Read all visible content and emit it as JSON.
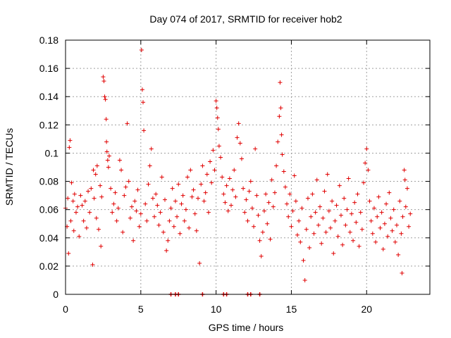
{
  "chart_data": {
    "type": "scatter",
    "title": "Day 074 of 2017, SRMTID for receiver hob2",
    "xlabel": "GPS time / hours",
    "ylabel": "SRMTID / TECUs",
    "xlim": [
      0,
      24.2
    ],
    "ylim": [
      0,
      0.18
    ],
    "xticks": [
      0,
      5,
      10,
      15,
      20
    ],
    "xtick_labels": [
      "0",
      "5",
      "10",
      "15",
      "20"
    ],
    "yticks": [
      0,
      0.02,
      0.04,
      0.06,
      0.08,
      0.1,
      0.12,
      0.14,
      0.16,
      0.18
    ],
    "ytick_labels": [
      "0",
      "0.02",
      "0.04",
      "0.06",
      "0.08",
      "0.1",
      "0.12",
      "0.14",
      "0.16",
      "0.18"
    ],
    "grid": true,
    "marker": "plus",
    "color": "#e00000",
    "series": [
      {
        "name": "SRMTID",
        "points": [
          [
            0.0,
            0.061
          ],
          [
            0.1,
            0.048
          ],
          [
            0.15,
            0.068
          ],
          [
            0.2,
            0.029
          ],
          [
            0.25,
            0.104
          ],
          [
            0.3,
            0.109
          ],
          [
            0.35,
            0.052
          ],
          [
            0.4,
            0.079
          ],
          [
            0.5,
            0.066
          ],
          [
            0.55,
            0.045
          ],
          [
            0.6,
            0.071
          ],
          [
            0.7,
            0.058
          ],
          [
            0.8,
            0.062
          ],
          [
            0.9,
            0.041
          ],
          [
            1.0,
            0.07
          ],
          [
            1.1,
            0.063
          ],
          [
            1.2,
            0.052
          ],
          [
            1.3,
            0.066
          ],
          [
            1.4,
            0.047
          ],
          [
            1.5,
            0.073
          ],
          [
            1.6,
            0.058
          ],
          [
            1.7,
            0.075
          ],
          [
            1.8,
            0.021
          ],
          [
            1.85,
            0.088
          ],
          [
            1.9,
            0.068
          ],
          [
            2.0,
            0.085
          ],
          [
            2.05,
            0.054
          ],
          [
            2.1,
            0.091
          ],
          [
            2.2,
            0.046
          ],
          [
            2.3,
            0.077
          ],
          [
            2.35,
            0.034
          ],
          [
            2.4,
            0.069
          ],
          [
            2.5,
            0.154
          ],
          [
            2.55,
            0.151
          ],
          [
            2.6,
            0.14
          ],
          [
            2.65,
            0.138
          ],
          [
            2.7,
            0.124
          ],
          [
            2.72,
            0.108
          ],
          [
            2.75,
            0.101
          ],
          [
            2.8,
            0.095
          ],
          [
            2.85,
            0.09
          ],
          [
            2.9,
            0.098
          ],
          [
            3.0,
            0.075
          ],
          [
            3.1,
            0.058
          ],
          [
            3.2,
            0.064
          ],
          [
            3.3,
            0.072
          ],
          [
            3.4,
            0.052
          ],
          [
            3.5,
            0.061
          ],
          [
            3.6,
            0.095
          ],
          [
            3.7,
            0.088
          ],
          [
            3.8,
            0.044
          ],
          [
            3.9,
            0.07
          ],
          [
            4.0,
            0.076
          ],
          [
            4.1,
            0.121
          ],
          [
            4.2,
            0.08
          ],
          [
            4.3,
            0.054
          ],
          [
            4.4,
            0.062
          ],
          [
            4.5,
            0.038
          ],
          [
            4.6,
            0.066
          ],
          [
            4.7,
            0.059
          ],
          [
            4.8,
            0.074
          ],
          [
            4.9,
            0.048
          ],
          [
            5.0,
            0.057
          ],
          [
            5.05,
            0.173
          ],
          [
            5.1,
            0.145
          ],
          [
            5.15,
            0.136
          ],
          [
            5.2,
            0.116
          ],
          [
            5.3,
            0.064
          ],
          [
            5.4,
            0.052
          ],
          [
            5.5,
            0.078
          ],
          [
            5.6,
            0.091
          ],
          [
            5.7,
            0.103
          ],
          [
            5.8,
            0.068
          ],
          [
            5.9,
            0.055
          ],
          [
            6.0,
            0.071
          ],
          [
            6.1,
            0.063
          ],
          [
            6.2,
            0.049
          ],
          [
            6.3,
            0.058
          ],
          [
            6.4,
            0.083
          ],
          [
            6.5,
            0.044
          ],
          [
            6.6,
            0.067
          ],
          [
            6.7,
            0.031
          ],
          [
            6.8,
            0.038
          ],
          [
            6.9,
            0.052
          ],
          [
            7.0,
            0.061
          ],
          [
            7.1,
            0.075
          ],
          [
            7.2,
            0.048
          ],
          [
            7.3,
            0.066
          ],
          [
            7.4,
            0.055
          ],
          [
            7.5,
            0.078
          ],
          [
            7.6,
            0.043
          ],
          [
            7.7,
            0.064
          ],
          [
            7.8,
            0.07
          ],
          [
            7.9,
            0.052
          ],
          [
            8.0,
            0.06
          ],
          [
            8.1,
            0.083
          ],
          [
            8.2,
            0.047
          ],
          [
            8.3,
            0.088
          ],
          [
            8.4,
            0.069
          ],
          [
            8.5,
            0.074
          ],
          [
            8.6,
            0.057
          ],
          [
            8.7,
            0.045
          ],
          [
            8.8,
            0.068
          ],
          [
            8.9,
            0.022
          ],
          [
            9.0,
            0.078
          ],
          [
            9.1,
            0.091
          ],
          [
            9.2,
            0.066
          ],
          [
            9.3,
            0.072
          ],
          [
            9.4,
            0.085
          ],
          [
            9.5,
            0.058
          ],
          [
            9.6,
            0.094
          ],
          [
            9.7,
            0.079
          ],
          [
            9.8,
            0.102
          ],
          [
            9.9,
            0.088
          ],
          [
            10.0,
            0.137
          ],
          [
            10.05,
            0.132
          ],
          [
            10.1,
            0.125
          ],
          [
            10.15,
            0.117
          ],
          [
            10.2,
            0.105
          ],
          [
            10.3,
            0.097
          ],
          [
            10.4,
            0.083
          ],
          [
            10.5,
            0.071
          ],
          [
            10.6,
            0.065
          ],
          [
            10.7,
            0.077
          ],
          [
            10.8,
            0.059
          ],
          [
            10.9,
            0.082
          ],
          [
            11.0,
            0.063
          ],
          [
            11.1,
            0.074
          ],
          [
            11.2,
            0.088
          ],
          [
            11.3,
            0.069
          ],
          [
            11.4,
            0.111
          ],
          [
            11.5,
            0.121
          ],
          [
            11.6,
            0.107
          ],
          [
            11.7,
            0.096
          ],
          [
            11.8,
            0.075
          ],
          [
            11.9,
            0.058
          ],
          [
            12.0,
            0.067
          ],
          [
            12.1,
            0.052
          ],
          [
            12.2,
            0.073
          ],
          [
            12.3,
            0.08
          ],
          [
            12.4,
            0.061
          ],
          [
            12.5,
            0.048
          ],
          [
            12.6,
            0.103
          ],
          [
            12.7,
            0.07
          ],
          [
            12.8,
            0.056
          ],
          [
            12.9,
            0.038
          ],
          [
            13.0,
            0.027
          ],
          [
            13.1,
            0.044
          ],
          [
            13.2,
            0.059
          ],
          [
            13.3,
            0.071
          ],
          [
            13.4,
            0.05
          ],
          [
            13.5,
            0.065
          ],
          [
            13.6,
            0.039
          ],
          [
            13.7,
            0.081
          ],
          [
            13.8,
            0.062
          ],
          [
            13.9,
            0.072
          ],
          [
            14.0,
            0.091
          ],
          [
            14.1,
            0.108
          ],
          [
            14.2,
            0.126
          ],
          [
            14.25,
            0.15
          ],
          [
            14.3,
            0.132
          ],
          [
            14.35,
            0.113
          ],
          [
            14.4,
            0.099
          ],
          [
            14.5,
            0.087
          ],
          [
            14.6,
            0.076
          ],
          [
            14.7,
            0.064
          ],
          [
            14.8,
            0.055
          ],
          [
            14.9,
            0.071
          ],
          [
            15.0,
            0.048
          ],
          [
            15.1,
            0.059
          ],
          [
            15.2,
            0.084
          ],
          [
            15.3,
            0.066
          ],
          [
            15.4,
            0.042
          ],
          [
            15.5,
            0.052
          ],
          [
            15.6,
            0.037
          ],
          [
            15.7,
            0.061
          ],
          [
            15.8,
            0.024
          ],
          [
            15.9,
            0.01
          ],
          [
            16.0,
            0.046
          ],
          [
            16.1,
            0.068
          ],
          [
            16.2,
            0.033
          ],
          [
            16.3,
            0.055
          ],
          [
            16.4,
            0.071
          ],
          [
            16.5,
            0.043
          ],
          [
            16.6,
            0.058
          ],
          [
            16.7,
            0.081
          ],
          [
            16.8,
            0.049
          ],
          [
            16.9,
            0.062
          ],
          [
            17.0,
            0.036
          ],
          [
            17.1,
            0.054
          ],
          [
            17.2,
            0.073
          ],
          [
            17.3,
            0.044
          ],
          [
            17.4,
            0.085
          ],
          [
            17.5,
            0.059
          ],
          [
            17.6,
            0.047
          ],
          [
            17.7,
            0.066
          ],
          [
            17.8,
            0.029
          ],
          [
            17.9,
            0.052
          ],
          [
            18.0,
            0.063
          ],
          [
            18.1,
            0.041
          ],
          [
            18.2,
            0.077
          ],
          [
            18.3,
            0.056
          ],
          [
            18.4,
            0.035
          ],
          [
            18.5,
            0.068
          ],
          [
            18.6,
            0.049
          ],
          [
            18.7,
            0.06
          ],
          [
            18.8,
            0.082
          ],
          [
            18.9,
            0.044
          ],
          [
            19.0,
            0.057
          ],
          [
            19.1,
            0.038
          ],
          [
            19.2,
            0.065
          ],
          [
            19.3,
            0.051
          ],
          [
            19.4,
            0.071
          ],
          [
            19.5,
            0.034
          ],
          [
            19.6,
            0.058
          ],
          [
            19.7,
            0.046
          ],
          [
            19.8,
            0.079
          ],
          [
            19.9,
            0.093
          ],
          [
            20.0,
            0.103
          ],
          [
            20.1,
            0.088
          ],
          [
            20.2,
            0.066
          ],
          [
            20.3,
            0.052
          ],
          [
            20.4,
            0.043
          ],
          [
            20.5,
            0.061
          ],
          [
            20.6,
            0.037
          ],
          [
            20.7,
            0.055
          ],
          [
            20.8,
            0.069
          ],
          [
            20.9,
            0.047
          ],
          [
            21.0,
            0.058
          ],
          [
            21.1,
            0.032
          ],
          [
            21.2,
            0.05
          ],
          [
            21.3,
            0.064
          ],
          [
            21.4,
            0.041
          ],
          [
            21.5,
            0.072
          ],
          [
            21.6,
            0.054
          ],
          [
            21.7,
            0.045
          ],
          [
            21.8,
            0.06
          ],
          [
            21.9,
            0.037
          ],
          [
            22.0,
            0.049
          ],
          [
            22.1,
            0.028
          ],
          [
            22.2,
            0.066
          ],
          [
            22.3,
            0.043
          ],
          [
            22.35,
            0.015
          ],
          [
            22.4,
            0.055
          ],
          [
            22.5,
            0.088
          ],
          [
            22.55,
            0.081
          ],
          [
            22.6,
            0.062
          ],
          [
            22.7,
            0.075
          ],
          [
            22.8,
            0.048
          ],
          [
            22.9,
            0.057
          ]
        ]
      }
    ],
    "gaps_on_axis_x": [
      7.0,
      7.3,
      7.5,
      9.1,
      10.5,
      10.7,
      12.1,
      12.3,
      12.9
    ]
  }
}
